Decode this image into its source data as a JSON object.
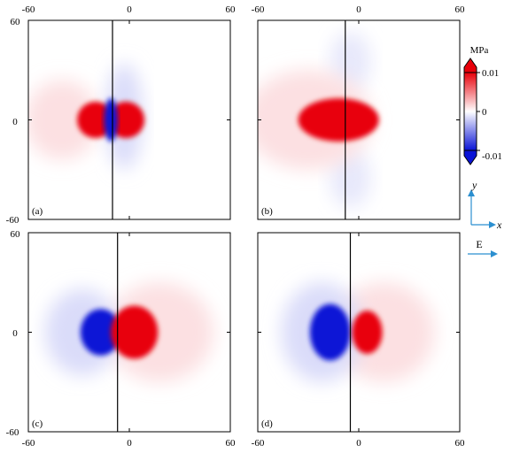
{
  "colors": {
    "positive": "#e8000a",
    "negative": "#0a14d6",
    "neutral": "#ffffff",
    "frame": "#000000",
    "arrow": "#2b8fd0"
  },
  "chart_data": {
    "type": "heatmap",
    "layout": "2x2",
    "xlim": [
      -60,
      60
    ],
    "ylim": [
      -60,
      60
    ],
    "x_ticks": [
      "-60",
      "0",
      "60"
    ],
    "y_ticks": [
      "60",
      "0",
      "-60"
    ],
    "colorbar": {
      "unit": "MPa",
      "range": [
        -0.01,
        0.01
      ],
      "tick_labels": [
        "0.01",
        "0",
        "-0.01"
      ],
      "colormap": [
        "#0a14d6",
        "#ffffff",
        "#e8000a"
      ]
    },
    "direction_indicator": {
      "y_label": "y",
      "x_label": "x",
      "field_label": "E"
    },
    "panels": [
      {
        "label": "(a)",
        "fault_x": -10,
        "blobs": [
          {
            "cx": -20,
            "cy": 0,
            "rx": 11,
            "ry": 11,
            "value": 0.01
          },
          {
            "cx": -2,
            "cy": 0,
            "rx": 11,
            "ry": 11,
            "value": 0.01
          },
          {
            "cx": -11,
            "cy": 0,
            "rx": 4,
            "ry": 13,
            "value": -0.01
          },
          {
            "cx": -3,
            "cy": 2,
            "rx": 11,
            "ry": 32,
            "value": -0.0015
          },
          {
            "cx": -40,
            "cy": 0,
            "rx": 22,
            "ry": 24,
            "value": 0.0012
          }
        ]
      },
      {
        "label": "(b)",
        "fault_x": -8,
        "blobs": [
          {
            "cx": -12,
            "cy": 0,
            "rx": 24,
            "ry": 13,
            "value": 0.01
          },
          {
            "cx": -8,
            "cy": 0,
            "rx": 2,
            "ry": 8,
            "value": -0.004
          },
          {
            "cx": -5,
            "cy": 35,
            "rx": 12,
            "ry": 18,
            "value": -0.001
          },
          {
            "cx": -5,
            "cy": -35,
            "rx": 12,
            "ry": 18,
            "value": -0.001
          },
          {
            "cx": -30,
            "cy": 0,
            "rx": 38,
            "ry": 30,
            "value": 0.0012
          }
        ]
      },
      {
        "label": "(c)",
        "fault_x": -7,
        "blobs": [
          {
            "cx": -17,
            "cy": 0,
            "rx": 12,
            "ry": 14,
            "value": -0.01
          },
          {
            "cx": 3,
            "cy": 0,
            "rx": 14,
            "ry": 16,
            "value": 0.01
          },
          {
            "cx": -28,
            "cy": 0,
            "rx": 22,
            "ry": 26,
            "value": -0.0015
          },
          {
            "cx": 18,
            "cy": 0,
            "rx": 32,
            "ry": 30,
            "value": 0.0012
          }
        ]
      },
      {
        "label": "(d)",
        "fault_x": -5,
        "blobs": [
          {
            "cx": -17,
            "cy": 0,
            "rx": 12,
            "ry": 17,
            "value": -0.01
          },
          {
            "cx": 5,
            "cy": 0,
            "rx": 9,
            "ry": 13,
            "value": 0.01
          },
          {
            "cx": -22,
            "cy": 0,
            "rx": 24,
            "ry": 30,
            "value": -0.0015
          },
          {
            "cx": 15,
            "cy": 0,
            "rx": 30,
            "ry": 30,
            "value": 0.0012
          }
        ]
      }
    ]
  }
}
